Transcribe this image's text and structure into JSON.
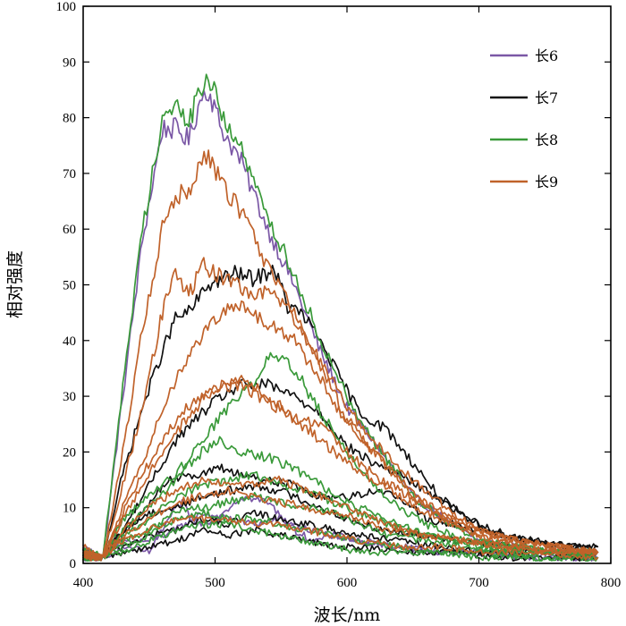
{
  "chart_data": {
    "type": "line",
    "title": "",
    "xlabel": "波长/nm",
    "ylabel": "相对强度",
    "xlim": [
      400,
      800
    ],
    "ylim": [
      0,
      100
    ],
    "xticks": [
      400,
      500,
      600,
      700,
      800
    ],
    "yticks": [
      0,
      10,
      20,
      30,
      40,
      50,
      60,
      70,
      80,
      90,
      100
    ],
    "grid": false,
    "legend_position": "top-right",
    "legend": [
      {
        "name": "长6",
        "color": "#7b58a6"
      },
      {
        "name": "长7",
        "color": "#111111"
      },
      {
        "name": "长8",
        "color": "#3a9a3a"
      },
      {
        "name": "长9",
        "color": "#c0622a"
      }
    ],
    "series": [
      {
        "name": "长6",
        "color": "#7b58a6",
        "x": [
          400,
          415,
          430,
          445,
          460,
          470,
          480,
          490,
          495,
          505,
          520,
          540,
          560,
          580,
          600,
          620,
          650,
          680,
          700,
          730,
          760,
          790
        ],
        "y": [
          3,
          1,
          30,
          58,
          78,
          78,
          76,
          84,
          85,
          78,
          72,
          60,
          50,
          38,
          28,
          22,
          12,
          7,
          4,
          3,
          2,
          2
        ]
      },
      {
        "name": "长6",
        "color": "#7b58a6",
        "x": [
          400,
          415,
          430,
          450,
          470,
          490,
          510,
          530,
          550,
          570,
          590,
          610,
          640,
          670,
          700,
          740,
          790
        ],
        "y": [
          1,
          1,
          4,
          4,
          6,
          9,
          8,
          7,
          8,
          6,
          5,
          4,
          3,
          2,
          2,
          1,
          1
        ]
      },
      {
        "name": "长6",
        "color": "#7b58a6",
        "x": [
          400,
          415,
          430,
          450,
          465,
          475,
          485,
          500,
          510,
          520,
          540,
          560,
          575,
          590,
          610,
          640,
          680,
          720,
          760,
          790
        ],
        "y": [
          2,
          1,
          3,
          2,
          8,
          11,
          7,
          8,
          10,
          12,
          11,
          6,
          4,
          5,
          4,
          3,
          2,
          2,
          1,
          1
        ]
      },
      {
        "name": "长7",
        "color": "#111111",
        "x": [
          400,
          415,
          430,
          445,
          460,
          470,
          480,
          495,
          505,
          515,
          530,
          545,
          555,
          565,
          580,
          595,
          610,
          630,
          650,
          670,
          690,
          710,
          740,
          770,
          790
        ],
        "y": [
          2,
          1,
          16,
          28,
          38,
          44,
          45,
          50,
          51,
          52,
          51,
          53,
          46,
          45,
          40,
          33,
          27,
          24,
          18,
          12,
          8,
          6,
          4,
          3,
          3
        ]
      },
      {
        "name": "长7",
        "color": "#111111",
        "x": [
          400,
          415,
          430,
          450,
          470,
          490,
          505,
          520,
          540,
          560,
          580,
          600,
          620,
          640,
          660,
          680,
          700,
          720,
          745,
          770,
          790
        ],
        "y": [
          2,
          1,
          6,
          14,
          22,
          27,
          30,
          32,
          32,
          30,
          27,
          21,
          18,
          16,
          13,
          10,
          7,
          5,
          4,
          3,
          2
        ]
      },
      {
        "name": "长7",
        "color": "#111111",
        "x": [
          400,
          415,
          430,
          450,
          470,
          490,
          510,
          530,
          550,
          570,
          590,
          610,
          630,
          660,
          690,
          720,
          760,
          790
        ],
        "y": [
          1,
          1,
          6,
          9,
          10,
          12,
          13,
          14,
          13,
          11,
          9,
          7,
          6,
          5,
          4,
          3,
          2,
          2
        ]
      },
      {
        "name": "长7",
        "color": "#111111",
        "x": [
          400,
          415,
          430,
          450,
          470,
          490,
          510,
          530,
          550,
          570,
          590,
          610,
          640,
          670,
          700,
          740,
          790
        ],
        "y": [
          1,
          1,
          3,
          5,
          6,
          8,
          7,
          9,
          8,
          7,
          6,
          5,
          4,
          3,
          2,
          2,
          1
        ]
      },
      {
        "name": "长7",
        "color": "#111111",
        "x": [
          400,
          415,
          430,
          450,
          470,
          490,
          510,
          530,
          550,
          570,
          590,
          610,
          640,
          680,
          720,
          760,
          790
        ],
        "y": [
          2,
          1,
          2,
          3,
          4,
          6,
          5,
          6,
          5,
          4,
          3,
          3,
          2,
          2,
          1,
          1,
          1
        ]
      },
      {
        "name": "长7",
        "color": "#111111",
        "x": [
          400,
          415,
          430,
          445,
          460,
          475,
          490,
          505,
          520,
          540,
          560,
          580,
          600,
          620,
          640,
          660,
          680,
          700,
          720,
          740,
          770,
          790
        ],
        "y": [
          2,
          1,
          5,
          9,
          14,
          16,
          16,
          17,
          16,
          15,
          14,
          12,
          12,
          13,
          12,
          8,
          7,
          6,
          5,
          4,
          3,
          3
        ]
      },
      {
        "name": "长8",
        "color": "#3a9a3a",
        "x": [
          400,
          415,
          430,
          445,
          460,
          470,
          480,
          490,
          495,
          505,
          520,
          540,
          560,
          580,
          600,
          620,
          650,
          680,
          700,
          730,
          760,
          790
        ],
        "y": [
          3,
          1,
          32,
          60,
          80,
          82,
          79,
          86,
          87,
          81,
          74,
          62,
          52,
          40,
          30,
          22,
          12,
          7,
          4,
          3,
          2,
          2
        ]
      },
      {
        "name": "长8",
        "color": "#3a9a3a",
        "x": [
          400,
          415,
          430,
          450,
          470,
          490,
          510,
          530,
          545,
          560,
          580,
          600,
          620,
          640,
          660,
          680,
          700,
          730,
          760,
          790
        ],
        "y": [
          2,
          1,
          8,
          12,
          16,
          22,
          28,
          33,
          38,
          35,
          27,
          20,
          14,
          10,
          7,
          5,
          4,
          3,
          2,
          2
        ]
      },
      {
        "name": "长8",
        "color": "#3a9a3a",
        "x": [
          400,
          415,
          430,
          450,
          470,
          490,
          505,
          520,
          540,
          560,
          580,
          600,
          620,
          640,
          660,
          680,
          700,
          730,
          760,
          790
        ],
        "y": [
          2,
          1,
          6,
          10,
          15,
          20,
          22,
          20,
          19,
          17,
          14,
          11,
          9,
          7,
          5,
          4,
          3,
          2,
          2,
          2
        ]
      },
      {
        "name": "长8",
        "color": "#3a9a3a",
        "x": [
          400,
          415,
          430,
          450,
          470,
          490,
          510,
          530,
          550,
          570,
          590,
          610,
          630,
          660,
          690,
          720,
          760,
          790
        ],
        "y": [
          1,
          1,
          5,
          8,
          12,
          14,
          15,
          16,
          14,
          13,
          11,
          9,
          7,
          5,
          4,
          3,
          2,
          2
        ]
      },
      {
        "name": "长8",
        "color": "#3a9a3a",
        "x": [
          400,
          415,
          430,
          450,
          470,
          490,
          510,
          530,
          550,
          570,
          590,
          610,
          630,
          660,
          690,
          720,
          760,
          790
        ],
        "y": [
          1,
          1,
          4,
          6,
          9,
          10,
          11,
          12,
          11,
          10,
          9,
          7,
          5,
          4,
          3,
          2,
          2,
          1
        ]
      },
      {
        "name": "长8",
        "color": "#3a9a3a",
        "x": [
          400,
          415,
          430,
          450,
          470,
          490,
          510,
          530,
          550,
          570,
          590,
          610,
          640,
          670,
          700,
          740,
          790
        ],
        "y": [
          1,
          1,
          2,
          4,
          6,
          7,
          7,
          6,
          5,
          4,
          3,
          2,
          2,
          2,
          1,
          1,
          1
        ]
      },
      {
        "name": "长8",
        "color": "#3a9a3a",
        "x": [
          400,
          415,
          430,
          450,
          470,
          490,
          510,
          530,
          550,
          570,
          590,
          610,
          640,
          670,
          700,
          740,
          790
        ],
        "y": [
          1,
          1,
          3,
          5,
          8,
          9,
          8,
          8,
          7,
          6,
          5,
          4,
          3,
          2,
          2,
          1,
          1
        ]
      },
      {
        "name": "长9",
        "color": "#c0622a",
        "x": [
          400,
          415,
          430,
          445,
          460,
          470,
          480,
          490,
          495,
          505,
          520,
          540,
          560,
          580,
          600,
          620,
          650,
          680,
          700,
          730,
          760,
          790
        ],
        "y": [
          3,
          1,
          20,
          42,
          60,
          66,
          67,
          72,
          73,
          68,
          63,
          53,
          45,
          35,
          26,
          20,
          12,
          7,
          5,
          3,
          2,
          2
        ]
      },
      {
        "name": "长9",
        "color": "#c0622a",
        "x": [
          400,
          415,
          430,
          445,
          460,
          470,
          480,
          490,
          500,
          515,
          530,
          545,
          560,
          580,
          600,
          620,
          640,
          660,
          680,
          700,
          730,
          760,
          790
        ],
        "y": [
          2,
          1,
          14,
          28,
          45,
          53,
          48,
          54,
          52,
          50,
          48,
          49,
          44,
          36,
          28,
          22,
          17,
          13,
          9,
          6,
          4,
          3,
          2
        ]
      },
      {
        "name": "长9",
        "color": "#c0622a",
        "x": [
          400,
          415,
          430,
          445,
          460,
          475,
          490,
          505,
          520,
          540,
          560,
          580,
          600,
          620,
          640,
          660,
          680,
          700,
          730,
          760,
          790
        ],
        "y": [
          2,
          1,
          10,
          18,
          28,
          35,
          41,
          45,
          46,
          43,
          40,
          33,
          25,
          20,
          15,
          11,
          8,
          6,
          4,
          3,
          2
        ]
      },
      {
        "name": "长9",
        "color": "#c0622a",
        "x": [
          400,
          415,
          430,
          445,
          460,
          475,
          490,
          505,
          520,
          540,
          560,
          580,
          600,
          620,
          640,
          660,
          680,
          700,
          730,
          760,
          790
        ],
        "y": [
          2,
          1,
          8,
          14,
          20,
          25,
          29,
          32,
          33,
          30,
          26,
          22,
          18,
          15,
          12,
          9,
          7,
          5,
          4,
          3,
          2
        ]
      },
      {
        "name": "长9",
        "color": "#c0622a",
        "x": [
          400,
          415,
          430,
          445,
          460,
          475,
          490,
          505,
          520,
          540,
          560,
          580,
          600,
          620,
          640,
          660,
          680,
          700,
          730,
          760,
          790
        ],
        "y": [
          2,
          1,
          9,
          16,
          22,
          27,
          30,
          32,
          32,
          29,
          26,
          25,
          20,
          16,
          13,
          10,
          8,
          6,
          4,
          3,
          2
        ]
      },
      {
        "name": "长9",
        "color": "#c0622a",
        "x": [
          400,
          415,
          430,
          450,
          470,
          490,
          510,
          530,
          550,
          570,
          590,
          610,
          630,
          660,
          690,
          720,
          760,
          790
        ],
        "y": [
          1,
          1,
          6,
          10,
          13,
          15,
          14,
          14,
          15,
          13,
          11,
          9,
          7,
          5,
          4,
          3,
          2,
          2
        ]
      },
      {
        "name": "长9",
        "color": "#c0622a",
        "x": [
          400,
          415,
          430,
          450,
          470,
          490,
          510,
          530,
          550,
          570,
          590,
          610,
          630,
          660,
          690,
          720,
          760,
          790
        ],
        "y": [
          1,
          1,
          5,
          8,
          11,
          12,
          13,
          12,
          11,
          10,
          9,
          8,
          6,
          5,
          4,
          3,
          2,
          2
        ]
      },
      {
        "name": "长9",
        "color": "#c0622a",
        "x": [
          400,
          415,
          430,
          450,
          470,
          490,
          510,
          530,
          550,
          570,
          590,
          610,
          640,
          670,
          700,
          740,
          790
        ],
        "y": [
          1,
          1,
          4,
          6,
          8,
          8,
          8,
          7,
          7,
          6,
          5,
          4,
          3,
          3,
          2,
          2,
          1
        ]
      }
    ]
  }
}
